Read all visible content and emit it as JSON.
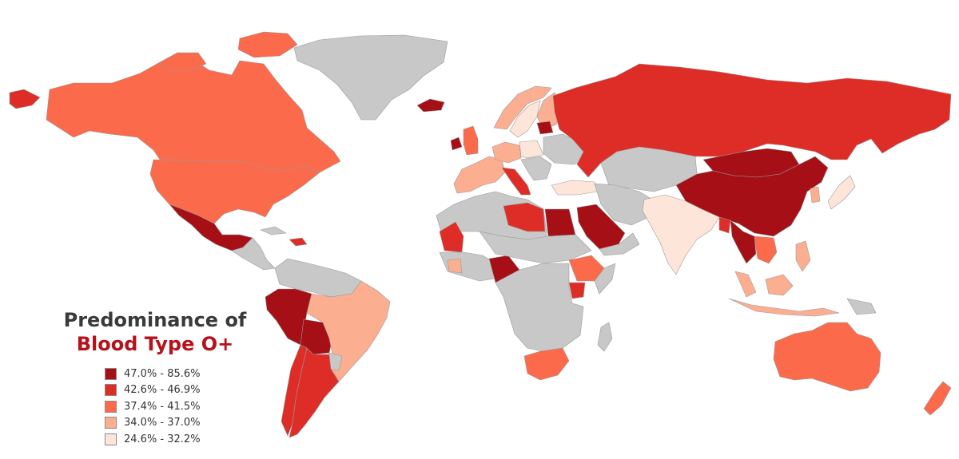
{
  "title": {
    "line1": "Predominance of",
    "line2": "Blood Type O+"
  },
  "colors": {
    "no_data": "#c8c8c8",
    "border": "#9a9a9a",
    "title_accent": "#b5121b"
  },
  "legend": [
    {
      "label": "47.0% - 85.6%",
      "class": "c1",
      "color": "#a50f15"
    },
    {
      "label": "42.6% - 46.9%",
      "class": "c2",
      "color": "#de2d26"
    },
    {
      "label": "37.4% - 41.5%",
      "class": "c3",
      "color": "#fb6a4a"
    },
    {
      "label": "34.0% - 37.0%",
      "class": "c4",
      "color": "#fcae91"
    },
    {
      "label": "24.6% - 32.2%",
      "class": "c5",
      "color": "#fee5d9"
    }
  ]
}
